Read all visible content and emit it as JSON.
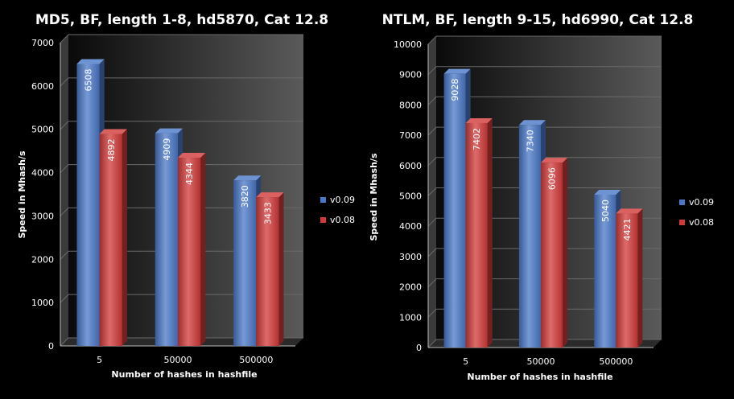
{
  "chart_data": [
    {
      "type": "bar",
      "title": "MD5, BF, length 1-8, hd5870, Cat 12.8",
      "xlabel": "Number of hashes in hashfile",
      "ylabel": "Speed in Mhash/s",
      "categories": [
        "5",
        "50000",
        "500000"
      ],
      "series": [
        {
          "name": "v0.09",
          "values": [
            6508,
            4909,
            3820
          ],
          "color": "#4a78c8"
        },
        {
          "name": "v0.08",
          "values": [
            4892,
            4344,
            3433
          ],
          "color": "#d13a38"
        }
      ],
      "ylim": [
        0,
        7000
      ],
      "yticks": [
        0,
        1000,
        2000,
        3000,
        4000,
        5000,
        6000,
        7000
      ],
      "grid": true,
      "legend": "right"
    },
    {
      "type": "bar",
      "title": "NTLM, BF, length 9-15, hd6990, Cat 12.8",
      "xlabel": "Number of hashes in hashfile",
      "ylabel": "Speed in Mhash/s",
      "categories": [
        "5",
        "50000",
        "500000"
      ],
      "series": [
        {
          "name": "v0.09",
          "values": [
            9028,
            7340,
            5040
          ],
          "color": "#4a78c8"
        },
        {
          "name": "v0.08",
          "values": [
            7402,
            6096,
            4421
          ],
          "color": "#d13a38"
        }
      ],
      "ylim": [
        0,
        10000
      ],
      "yticks": [
        0,
        1000,
        2000,
        3000,
        4000,
        5000,
        6000,
        7000,
        8000,
        9000,
        10000
      ],
      "grid": true,
      "legend": "right"
    }
  ]
}
